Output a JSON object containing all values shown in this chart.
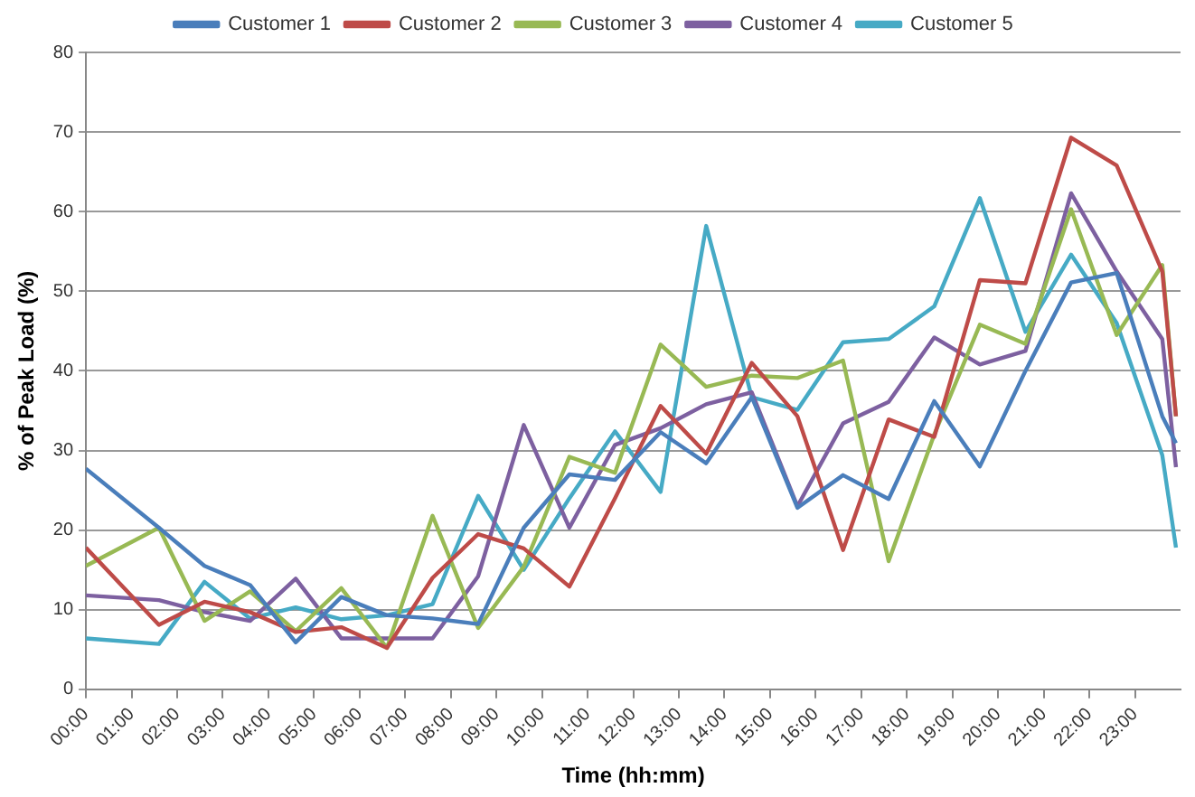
{
  "chart_data": {
    "type": "line",
    "xlabel": "Time (hh:mm)",
    "ylabel": "% of Peak Load (%)",
    "x": [
      0,
      1.6,
      2.6,
      3.6,
      4.6,
      5.6,
      6.6,
      7.6,
      8.6,
      9.6,
      10.6,
      11.6,
      12.6,
      13.6,
      14.6,
      15.6,
      16.6,
      17.6,
      18.6,
      19.6,
      20.6,
      21.6,
      22.6,
      23.6,
      23.9
    ],
    "xlim": [
      0,
      24
    ],
    "xticks": [
      {
        "value": 0,
        "label": "00:00"
      },
      {
        "value": 1,
        "label": "01:00"
      },
      {
        "value": 2,
        "label": "02:00"
      },
      {
        "value": 3,
        "label": "03:00"
      },
      {
        "value": 4,
        "label": "04:00"
      },
      {
        "value": 5,
        "label": "05:00"
      },
      {
        "value": 6,
        "label": "06:00"
      },
      {
        "value": 7,
        "label": "07:00"
      },
      {
        "value": 8,
        "label": "08:00"
      },
      {
        "value": 9,
        "label": "09:00"
      },
      {
        "value": 10,
        "label": "10:00"
      },
      {
        "value": 11,
        "label": "11:00"
      },
      {
        "value": 12,
        "label": "12:00"
      },
      {
        "value": 13,
        "label": "13:00"
      },
      {
        "value": 14,
        "label": "14:00"
      },
      {
        "value": 15,
        "label": "15:00"
      },
      {
        "value": 16,
        "label": "16:00"
      },
      {
        "value": 17,
        "label": "17:00"
      },
      {
        "value": 18,
        "label": "18:00"
      },
      {
        "value": 19,
        "label": "19:00"
      },
      {
        "value": 20,
        "label": "20:00"
      },
      {
        "value": 21,
        "label": "21:00"
      },
      {
        "value": 22,
        "label": "22:00"
      },
      {
        "value": 23,
        "label": "23:00"
      }
    ],
    "ylim": [
      0,
      80
    ],
    "yticks": [
      0,
      10,
      20,
      30,
      40,
      50,
      60,
      70,
      80
    ],
    "grid": "y",
    "legend": "top",
    "marker": "none",
    "line_style": "solid",
    "series": [
      {
        "name": "Customer 1",
        "color": "#4a7ebb",
        "values": [
          27.7,
          20.3,
          15.5,
          13.1,
          5.9,
          11.6,
          9.3,
          8.9,
          8.2,
          20.3,
          27,
          26.3,
          32.3,
          28.4,
          36.7,
          22.8,
          26.9,
          23.9,
          36.2,
          28,
          40,
          51.1,
          52.3,
          34.3,
          30.9
        ]
      },
      {
        "name": "Customer 2",
        "color": "#be4b48",
        "values": [
          17.8,
          8.1,
          11,
          9.7,
          7.2,
          7.8,
          5.2,
          14,
          19.5,
          17.7,
          12.9,
          24,
          35.6,
          29.6,
          41,
          34.3,
          17.5,
          33.9,
          31.7,
          51.4,
          51,
          69.3,
          65.8,
          52.5,
          34.3
        ]
      },
      {
        "name": "Customer 3",
        "color": "#98b954",
        "values": [
          15.5,
          20.3,
          8.6,
          12.3,
          7.3,
          12.7,
          5.2,
          21.8,
          7.7,
          15.4,
          29.2,
          27.2,
          43.3,
          38,
          39.4,
          39.1,
          41.3,
          16.1,
          32,
          45.8,
          43.4,
          60.3,
          44.5,
          53.3,
          34.3
        ]
      },
      {
        "name": "Customer 4",
        "color": "#7d60a0",
        "values": [
          11.8,
          11.2,
          9.7,
          8.6,
          13.9,
          6.4,
          6.4,
          6.4,
          14.2,
          33.2,
          20.3,
          30.7,
          32.8,
          35.8,
          37.3,
          23,
          33.4,
          36.1,
          44.2,
          40.8,
          42.5,
          62.3,
          52.5,
          44,
          27.9
        ]
      },
      {
        "name": "Customer 5",
        "color": "#46aac5",
        "values": [
          6.4,
          5.7,
          13.5,
          8.9,
          10.3,
          8.8,
          9.3,
          10.7,
          24.3,
          15,
          24,
          32.4,
          24.8,
          58.2,
          36.7,
          35.1,
          43.6,
          44,
          48.1,
          61.7,
          44.9,
          54.6,
          46,
          29.4,
          17.8
        ]
      }
    ]
  }
}
